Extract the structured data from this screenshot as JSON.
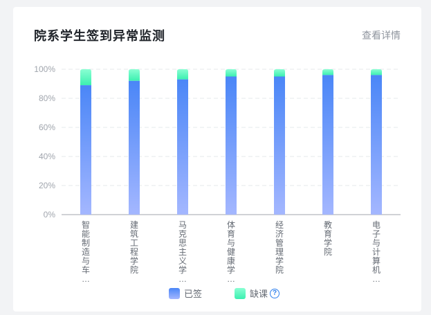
{
  "card": {
    "title": "院系学生签到异常监测",
    "details_link": "查看详情"
  },
  "colors": {
    "signed_top": "#4a86f7",
    "signed_bottom": "#a4b7ff",
    "absent_top": "#8affd3",
    "absent_bottom": "#3cf0b0",
    "axis": "#a0a5ad",
    "grid": "#e6e8eb",
    "help": "#2f80ed"
  },
  "chart_data": {
    "type": "bar",
    "stacked": true,
    "ylim": [
      0,
      100
    ],
    "yticks": [
      "0%",
      "20%",
      "40%",
      "60%",
      "80%",
      "100%"
    ],
    "categories": [
      "智能制造与车…",
      "建筑工程学院",
      "马克思主义学…",
      "体育与健康学…",
      "经济管理学院",
      "教育学院",
      "电子与计算机…"
    ],
    "series": [
      {
        "name": "已签",
        "values": [
          89,
          92,
          93,
          95,
          95,
          96,
          96
        ]
      },
      {
        "name": "缺课",
        "values": [
          11,
          8,
          7,
          5,
          5,
          4,
          4
        ]
      }
    ],
    "grid": true,
    "legend": "bottom"
  },
  "legend": {
    "signed_label": "已签",
    "absent_label": "缺课",
    "help_glyph": "?"
  }
}
